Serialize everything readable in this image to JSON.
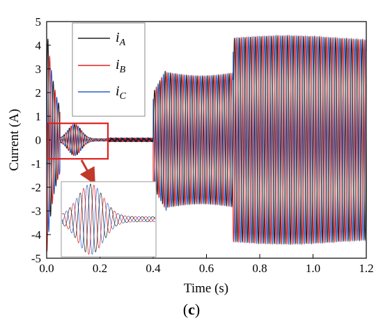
{
  "chart_data": {
    "type": "line",
    "title": "",
    "xlabel": "Time (s)",
    "ylabel": "Current (A)",
    "xlim": [
      0.0,
      1.2
    ],
    "ylim": [
      -5,
      5
    ],
    "x_ticks": [
      "0.0",
      "0.2",
      "0.4",
      "0.6",
      "0.8",
      "1.0",
      "1.2"
    ],
    "y_ticks": [
      "5",
      "4",
      "3",
      "2",
      "1",
      "0",
      "-1",
      "-2",
      "-3",
      "-4",
      "-5"
    ],
    "grid": false,
    "legend_position": "top-left",
    "series": [
      {
        "name": "i_A",
        "label_main": "i",
        "label_sub": "A",
        "color": "#222222"
      },
      {
        "name": "i_B",
        "label_main": "i",
        "label_sub": "B",
        "color": "#e02020"
      },
      {
        "name": "i_C",
        "label_main": "i",
        "label_sub": "C",
        "color": "#2a5fd0"
      }
    ],
    "segments": [
      {
        "t_start": 0.0,
        "t_end": 0.05,
        "amplitude": 4.3,
        "description": "startup transient"
      },
      {
        "t_start": 0.05,
        "t_end": 0.23,
        "amplitude": 0.65,
        "description": "decaying oscillation"
      },
      {
        "t_start": 0.23,
        "t_end": 0.4,
        "amplitude": 0.05,
        "description": "near zero"
      },
      {
        "t_start": 0.4,
        "t_end": 0.7,
        "amplitude": 2.8,
        "description": "first load step"
      },
      {
        "t_start": 0.7,
        "t_end": 1.2,
        "amplitude": 4.3,
        "description": "second load step"
      }
    ],
    "highlight_box": {
      "x_range": [
        0.0,
        0.23
      ],
      "y_range": [
        -0.8,
        0.7
      ],
      "color": "#e02020"
    },
    "inset": {
      "description": "zoom of decaying oscillation",
      "x_range": [
        0.05,
        0.23
      ]
    },
    "frequency_hz_visual": 50
  },
  "caption": {
    "open": "(",
    "letter": "c",
    "close": ")"
  }
}
